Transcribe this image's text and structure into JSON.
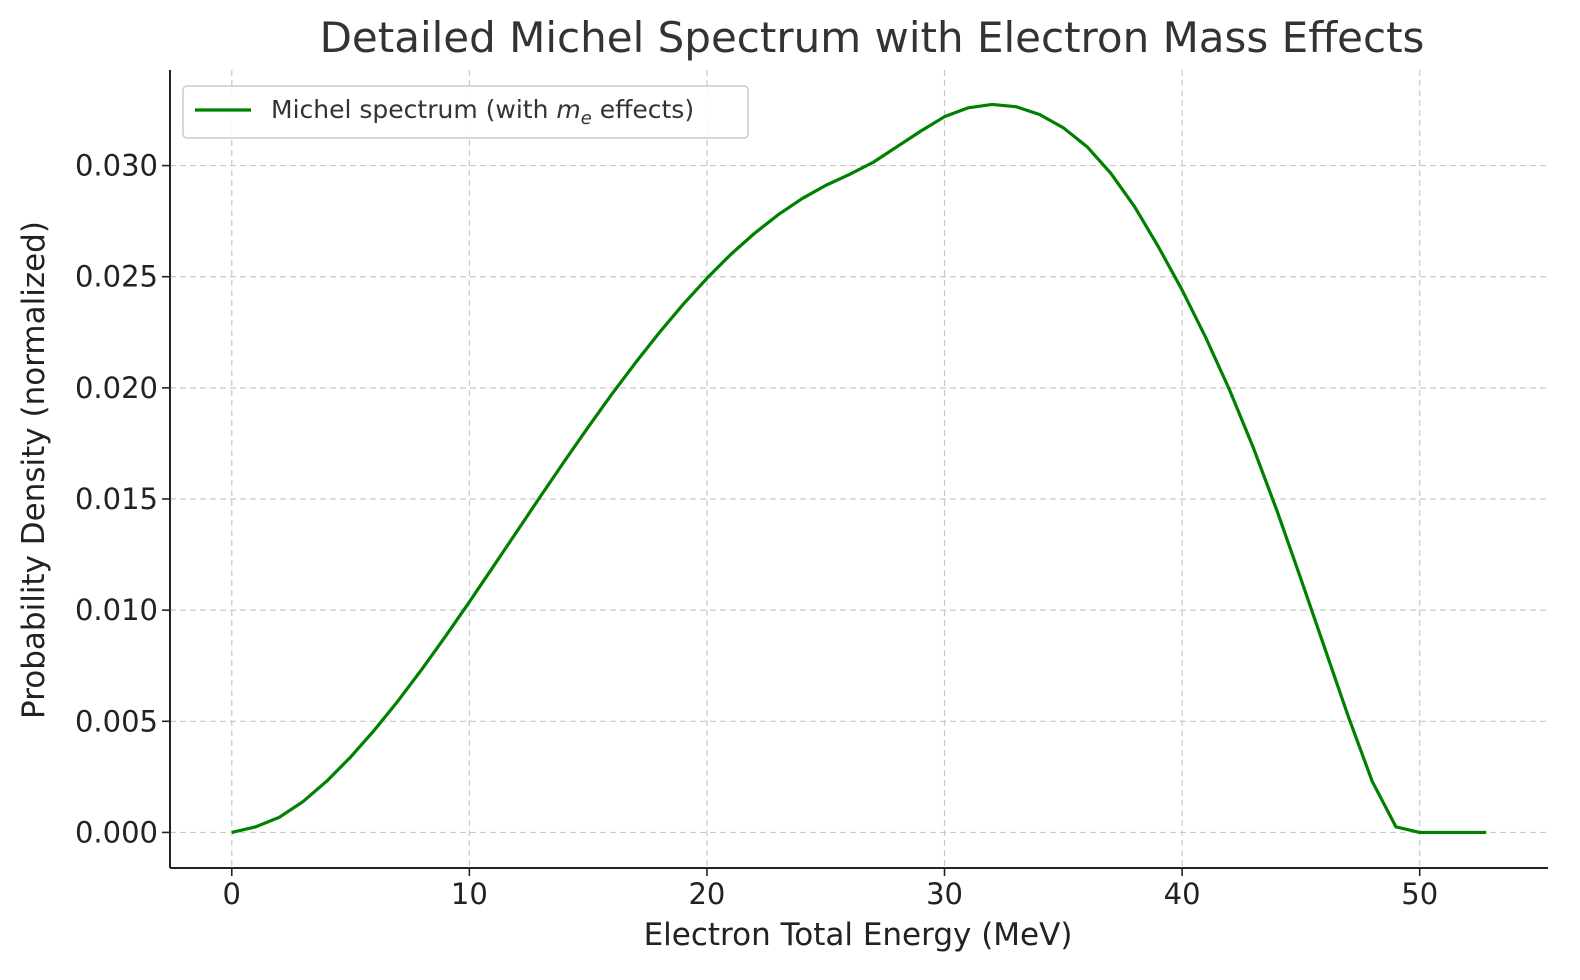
{
  "chart_data": {
    "type": "line",
    "title": "Detailed Michel Spectrum with Electron Mass Effects",
    "xlabel": "Electron Total Energy (MeV)",
    "ylabel": "Probability Density (normalized)",
    "xlim": [
      -2.6,
      55.4
    ],
    "ylim": [
      -0.0016,
      0.0343
    ],
    "xticks": [
      0,
      10,
      20,
      30,
      40,
      50
    ],
    "xtick_labels": [
      "0",
      "10",
      "20",
      "30",
      "40",
      "50"
    ],
    "yticks": [
      0.0,
      0.005,
      0.01,
      0.015,
      0.02,
      0.025,
      0.03
    ],
    "ytick_labels": [
      "0.000",
      "0.005",
      "0.010",
      "0.015",
      "0.020",
      "0.025",
      "0.030"
    ],
    "grid": true,
    "legend": {
      "position": "upper-left",
      "prefix": "Michel spectrum (with ",
      "symbol": "m",
      "subscript": "e",
      "suffix": " effects)"
    },
    "series": [
      {
        "name": "Michel spectrum (with m_e effects)",
        "color": "#008000",
        "x": [
          0,
          1,
          2,
          3,
          4,
          5,
          6,
          7,
          8,
          9,
          10,
          11,
          12,
          13,
          14,
          15,
          16,
          17,
          18,
          19,
          20,
          21,
          22,
          23,
          24,
          25,
          26,
          27,
          28,
          29,
          30,
          31,
          32,
          33,
          34,
          35,
          36,
          37,
          38,
          39,
          40,
          41,
          42,
          43,
          44,
          45,
          46,
          47,
          48,
          49,
          50,
          51,
          52,
          52.8
        ],
        "y": [
          0.0,
          0.00025,
          0.00068,
          0.00139,
          0.00231,
          0.00339,
          0.0046,
          0.00592,
          0.00734,
          0.00883,
          0.01037,
          0.01195,
          0.01354,
          0.01513,
          0.0167,
          0.01823,
          0.01972,
          0.02114,
          0.02249,
          0.02376,
          0.02493,
          0.026,
          0.02695,
          0.02779,
          0.02851,
          0.02911,
          0.0296,
          0.03015,
          0.03085,
          0.03155,
          0.0322,
          0.0326,
          0.03275,
          0.03265,
          0.0323,
          0.0317,
          0.03085,
          0.02965,
          0.02815,
          0.02635,
          0.0244,
          0.02225,
          0.0199,
          0.0173,
          0.01445,
          0.0114,
          0.0083,
          0.0052,
          0.0023,
          0.00025,
          0.0,
          0.0,
          0.0,
          0.0
        ]
      }
    ]
  }
}
